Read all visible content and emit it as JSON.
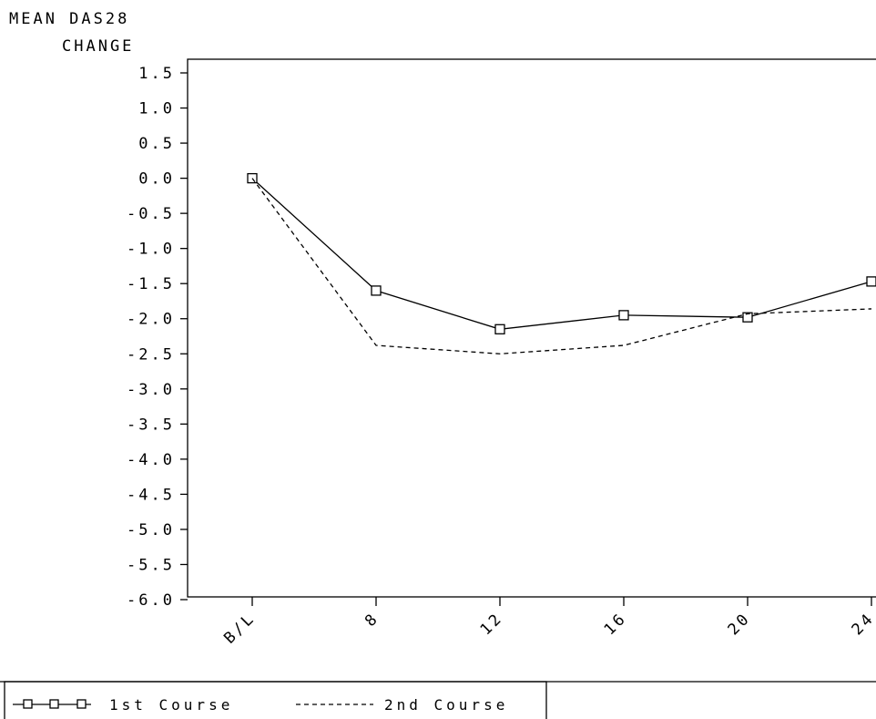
{
  "chart_data": {
    "type": "line",
    "ylabel_line1": "MEAN DAS28",
    "ylabel_line2": "CHANGE",
    "xlabel": "",
    "categories": [
      "B/L",
      "8",
      "12",
      "16",
      "20",
      "24"
    ],
    "ylim": [
      -6.0,
      1.5
    ],
    "yticks": [
      "1.5",
      "1.0",
      "0.5",
      "0.0",
      "-0.5",
      "-1.0",
      "-1.5",
      "-2.0",
      "-2.5",
      "-3.0",
      "-3.5",
      "-4.0",
      "-4.5",
      "-5.0",
      "-5.5",
      "-6.0"
    ],
    "series": [
      {
        "name": "1st Course",
        "style": "solid-square-markers",
        "values": [
          0.0,
          -1.6,
          -2.15,
          -1.95,
          -1.98,
          -1.47
        ]
      },
      {
        "name": "2nd Course",
        "style": "dashed",
        "values": [
          0.0,
          -2.38,
          -2.5,
          -2.38,
          -1.93,
          -1.86
        ]
      }
    ],
    "grid": false,
    "legend_position": "bottom-left",
    "colors": {
      "line": "#000000",
      "background": "#ffffff"
    }
  }
}
